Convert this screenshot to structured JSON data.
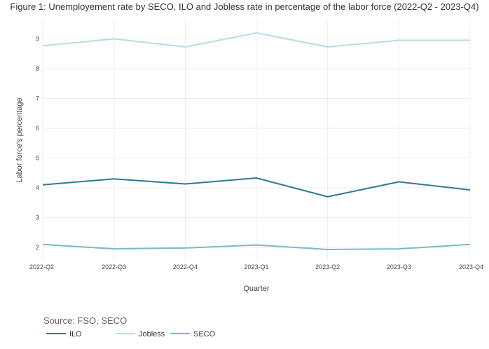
{
  "chart_data": {
    "type": "line",
    "title": "Figure 1: Unemployement rate by SECO, ILO and Jobless rate in percentage of the labor force (2022-Q2 - 2023-Q4)",
    "xlabel": "Quarter",
    "ylabel": "Labor force's percentage",
    "categories": [
      "2022-Q2",
      "2022-Q3",
      "2022-Q4",
      "2023-Q1",
      "2023-Q2",
      "2023-Q3",
      "2023-Q4"
    ],
    "yticks": [
      "2",
      "3",
      "4",
      "5",
      "6",
      "7",
      "8",
      "9"
    ],
    "ylim": [
      1.6,
      9.6
    ],
    "grid": true,
    "legend_position": "bottom-left",
    "source": "Source: FSO, SECO",
    "series": [
      {
        "name": "ILO",
        "color": "#2e7b8f",
        "values": [
          4.1,
          4.3,
          4.13,
          4.33,
          3.7,
          4.2,
          3.93
        ]
      },
      {
        "name": "Jobless",
        "color": "#b5dde4",
        "values": [
          8.77,
          9.0,
          8.73,
          9.2,
          8.73,
          8.95,
          8.95
        ]
      },
      {
        "name": "SECO",
        "color": "#7bbac6",
        "values": [
          2.1,
          1.95,
          1.98,
          2.08,
          1.93,
          1.95,
          2.1
        ]
      }
    ]
  }
}
